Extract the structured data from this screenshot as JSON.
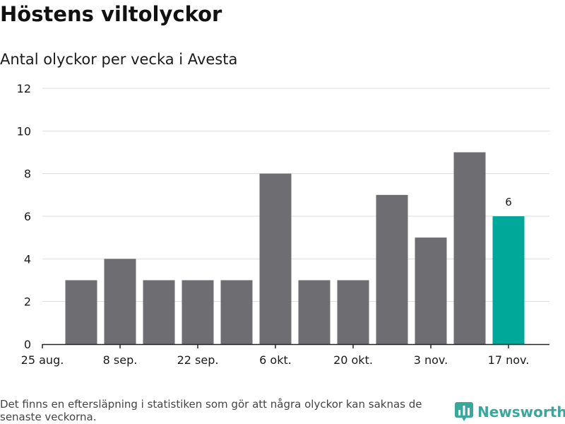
{
  "header": {
    "title": "Höstens viltolyckor",
    "subtitle": "Antal olyckor per vecka i Avesta"
  },
  "footer": {
    "note": "Det finns en eftersläpning i statistiken som gör att några olyckor kan saknas de senaste veckorna.",
    "brand": "Newsworthy",
    "brand_icon": "newsworthy-logo-icon"
  },
  "colors": {
    "bar": "#6e6d72",
    "highlight": "#00a89a",
    "grid": "#dddddd",
    "axis": "#222222",
    "brand": "#3aa79c"
  },
  "chart_data": {
    "type": "bar",
    "title": "Antal olyckor per vecka i Avesta",
    "xlabel": "",
    "ylabel": "",
    "ylim": [
      0,
      12
    ],
    "yticks": [
      0,
      2,
      4,
      6,
      8,
      10,
      12
    ],
    "xticks": [
      "25 aug.",
      "8 sep.",
      "22 sep.",
      "6 okt.",
      "20 okt.",
      "3 nov.",
      "17 nov."
    ],
    "values": [
      3,
      4,
      3,
      3,
      3,
      8,
      3,
      3,
      7,
      5,
      9,
      6
    ],
    "highlight_index": 11,
    "highlight_label": "6",
    "grid": true
  }
}
